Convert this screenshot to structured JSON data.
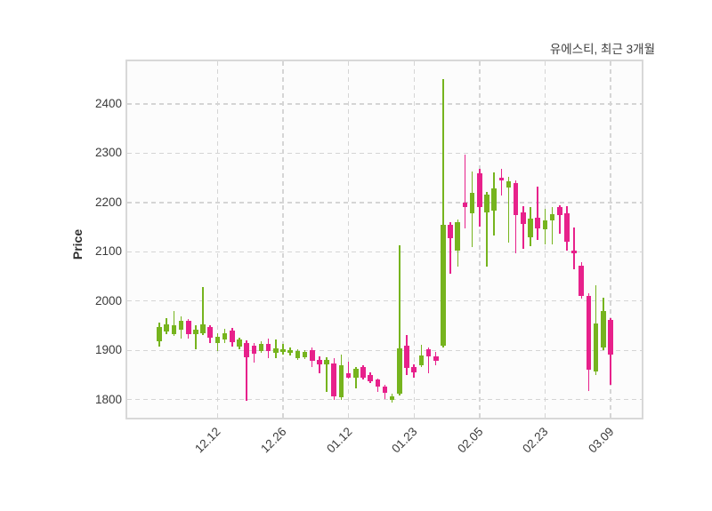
{
  "title": "유에스티, 최근 3개월",
  "y_axis": {
    "label": "Price",
    "ticks": [
      1800,
      1900,
      2000,
      2100,
      2200,
      2300,
      2400
    ]
  },
  "x_axis": {
    "ticks": [
      {
        "label": "12.12",
        "index": 8
      },
      {
        "label": "12.26",
        "index": 17
      },
      {
        "label": "01.12",
        "index": 26
      },
      {
        "label": "01.23",
        "index": 35
      },
      {
        "label": "02.05",
        "index": 44
      },
      {
        "label": "02.23",
        "index": 53
      },
      {
        "label": "03.09",
        "index": 62
      }
    ]
  },
  "chart_data": {
    "type": "candlestick",
    "title": "유에스티, 최근 3개월",
    "ylabel": "Price",
    "xlabel": "",
    "grid": true,
    "legend": "none",
    "ylim": [
      1764,
      2483
    ],
    "num_candles": 63,
    "up_color": "#76b41e",
    "down_color": "#e7218b",
    "candles_ohlc": [
      [
        1918,
        1956,
        1908,
        1947
      ],
      [
        1938,
        1965,
        1932,
        1953
      ],
      [
        1932,
        1980,
        1929,
        1950
      ],
      [
        1942,
        1969,
        1924,
        1960
      ],
      [
        1960,
        1963,
        1924,
        1933
      ],
      [
        1933,
        1950,
        1902,
        1942
      ],
      [
        1935,
        2028,
        1930,
        1953
      ],
      [
        1947,
        1950,
        1914,
        1926
      ],
      [
        1915,
        1934,
        1899,
        1927
      ],
      [
        1921,
        1944,
        1915,
        1935
      ],
      [
        1939,
        1945,
        1908,
        1917
      ],
      [
        1907,
        1925,
        1902,
        1921
      ],
      [
        1914,
        1920,
        1797,
        1886
      ],
      [
        1910,
        1914,
        1875,
        1893
      ],
      [
        1898,
        1918,
        1895,
        1913
      ],
      [
        1913,
        1924,
        1884,
        1898
      ],
      [
        1895,
        1922,
        1884,
        1904
      ],
      [
        1896,
        1912,
        1892,
        1902
      ],
      [
        1894,
        1905,
        1889,
        1901
      ],
      [
        1884,
        1902,
        1880,
        1898
      ],
      [
        1886,
        1900,
        1882,
        1897
      ],
      [
        1901,
        1905,
        1866,
        1878
      ],
      [
        1881,
        1888,
        1854,
        1872
      ],
      [
        1871,
        1886,
        1815,
        1880
      ],
      [
        1874,
        1884,
        1800,
        1806
      ],
      [
        1805,
        1892,
        1800,
        1870
      ],
      [
        1853,
        1877,
        1842,
        1844
      ],
      [
        1845,
        1865,
        1822,
        1862
      ],
      [
        1865,
        1870,
        1840,
        1845
      ],
      [
        1850,
        1855,
        1834,
        1837
      ],
      [
        1840,
        1843,
        1815,
        1827
      ],
      [
        1826,
        1830,
        1801,
        1813
      ],
      [
        1800,
        1812,
        1794,
        1806
      ],
      [
        1812,
        2113,
        1808,
        1904
      ],
      [
        1909,
        1930,
        1849,
        1864
      ],
      [
        1866,
        1871,
        1845,
        1855
      ],
      [
        1869,
        1911,
        1865,
        1890
      ],
      [
        1902,
        1906,
        1854,
        1887
      ],
      [
        1888,
        1896,
        1869,
        1878
      ],
      [
        1909,
        2450,
        1905,
        2155
      ],
      [
        2154,
        2160,
        2055,
        2128
      ],
      [
        2103,
        2165,
        2070,
        2160
      ],
      [
        2200,
        2298,
        2148,
        2190
      ],
      [
        2178,
        2262,
        2110,
        2220
      ],
      [
        2259,
        2268,
        2151,
        2190
      ],
      [
        2180,
        2222,
        2070,
        2216
      ],
      [
        2183,
        2261,
        2133,
        2228
      ],
      [
        2250,
        2268,
        2214,
        2244
      ],
      [
        2231,
        2252,
        2118,
        2243
      ],
      [
        2240,
        2245,
        2097,
        2175
      ],
      [
        2180,
        2193,
        2106,
        2157
      ],
      [
        2130,
        2190,
        2112,
        2167
      ],
      [
        2169,
        2232,
        2124,
        2148
      ],
      [
        2145,
        2187,
        2115,
        2163
      ],
      [
        2164,
        2190,
        2115,
        2176
      ],
      [
        2190,
        2195,
        2136,
        2175
      ],
      [
        2178,
        2193,
        2103,
        2121
      ],
      [
        2102,
        2150,
        2064,
        2096
      ],
      [
        2072,
        2079,
        2005,
        2010
      ],
      [
        2010,
        2015,
        1818,
        1860
      ],
      [
        1856,
        2031,
        1850,
        1954
      ],
      [
        1905,
        2007,
        1900,
        1980
      ],
      [
        1961,
        1965,
        1830,
        1891
      ]
    ]
  }
}
